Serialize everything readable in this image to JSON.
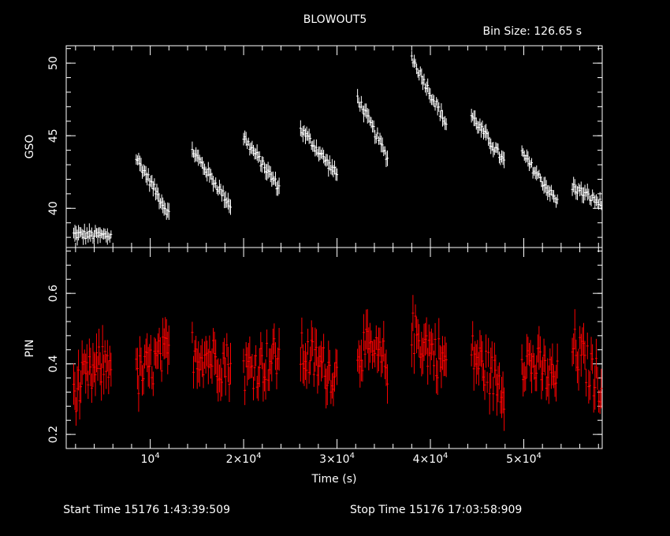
{
  "header": {
    "title": "BLOWOUT5",
    "bin_size": "Bin Size: 126.65 s"
  },
  "footer": {
    "start_time": "Start Time 15176  1:43:39:509",
    "stop_time": "Stop Time 15176 17:03:58:909"
  },
  "colors": {
    "background": "#000000",
    "axes": "#ffffff",
    "gso_series": "#ffffff",
    "pin_series": "#ff0000"
  },
  "chart_data": [
    {
      "type": "scatter",
      "panel": "top",
      "ylabel": "GSO",
      "xlabel": "",
      "xlim": [
        1000,
        58400
      ],
      "ylim": [
        37.3,
        51.2
      ],
      "yticks": [
        {
          "value": 40,
          "label": "40"
        },
        {
          "value": 45,
          "label": "45"
        },
        {
          "value": 50,
          "label": "50"
        }
      ],
      "grid": false,
      "series": [
        {
          "segments": [
            {
              "t0": 1800,
              "t1": 5800,
              "y0": 38.2,
              "y1": 38.1
            },
            {
              "t0": 8500,
              "t1": 12000,
              "y0": 43.5,
              "y1": 39.6
            },
            {
              "t0": 14500,
              "t1": 18600,
              "y0": 44.0,
              "y1": 40.2
            },
            {
              "t0": 20000,
              "t1": 23800,
              "y0": 44.9,
              "y1": 41.4
            },
            {
              "t0": 26100,
              "t1": 30000,
              "y0": 45.5,
              "y1": 42.3
            },
            {
              "t0": 32200,
              "t1": 35400,
              "y0": 47.6,
              "y1": 43.5
            },
            {
              "t0": 38000,
              "t1": 41700,
              "y0": 50.4,
              "y1": 45.8
            },
            {
              "t0": 44400,
              "t1": 47900,
              "y0": 46.4,
              "y1": 43.2
            },
            {
              "t0": 49800,
              "t1": 53600,
              "y0": 43.8,
              "y1": 40.4
            },
            {
              "t0": 55200,
              "t1": 58300,
              "y0": 41.5,
              "y1": 40.3
            }
          ]
        }
      ]
    },
    {
      "type": "scatter",
      "panel": "bottom",
      "ylabel": "PIN",
      "xlabel": "Time (s)",
      "xlim": [
        1000,
        58400
      ],
      "ylim": [
        0.16,
        0.73
      ],
      "yticks": [
        {
          "value": 0.2,
          "label": "0.2"
        },
        {
          "value": 0.4,
          "label": "0.4"
        },
        {
          "value": 0.6,
          "label": "0.6"
        }
      ],
      "xticks": [
        {
          "value": 10000,
          "base": "10",
          "exp": "4"
        },
        {
          "value": 20000,
          "base": "2×10",
          "exp": "4"
        },
        {
          "value": 30000,
          "base": "3×10",
          "exp": "4"
        },
        {
          "value": 40000,
          "base": "4×10",
          "exp": "4"
        },
        {
          "value": 50000,
          "base": "5×10",
          "exp": "4"
        }
      ],
      "grid": false,
      "series": [
        {
          "segments": [
            {
              "t0": 1800,
              "t1": 5800,
              "y0": 0.32,
              "y1": 0.42
            },
            {
              "t0": 8500,
              "t1": 12000,
              "y0": 0.36,
              "y1": 0.43
            },
            {
              "t0": 14500,
              "t1": 18600,
              "y0": 0.44,
              "y1": 0.4
            },
            {
              "t0": 20000,
              "t1": 23800,
              "y0": 0.38,
              "y1": 0.42
            },
            {
              "t0": 26100,
              "t1": 30000,
              "y0": 0.43,
              "y1": 0.37
            },
            {
              "t0": 32200,
              "t1": 35400,
              "y0": 0.45,
              "y1": 0.4
            },
            {
              "t0": 38000,
              "t1": 41700,
              "y0": 0.49,
              "y1": 0.4
            },
            {
              "t0": 44400,
              "t1": 47900,
              "y0": 0.43,
              "y1": 0.33
            },
            {
              "t0": 49800,
              "t1": 53600,
              "y0": 0.42,
              "y1": 0.35
            },
            {
              "t0": 55200,
              "t1": 58300,
              "y0": 0.45,
              "y1": 0.34
            }
          ]
        }
      ]
    }
  ]
}
